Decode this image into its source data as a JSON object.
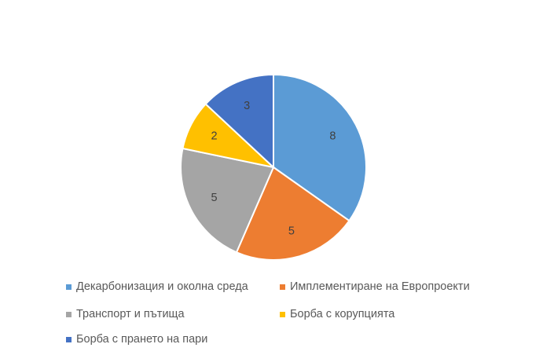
{
  "chart_data": {
    "type": "pie",
    "categories": [
      "Декарбонизация и околна среда",
      "Имплементиране на Европроекти",
      "Транспорт и пътища",
      "Борба с корупцията",
      "Борба с прането на пари"
    ],
    "values": [
      8,
      5,
      5,
      2,
      3
    ],
    "colors": [
      "#5B9BD5",
      "#ED7D31",
      "#A5A5A5",
      "#FFC000",
      "#4472C4"
    ],
    "label_color": "#404040",
    "legend_color": "#595959",
    "legend_position": "bottom",
    "start_angle": "12 o'clock",
    "direction": "clockwise",
    "data_labels": true
  }
}
